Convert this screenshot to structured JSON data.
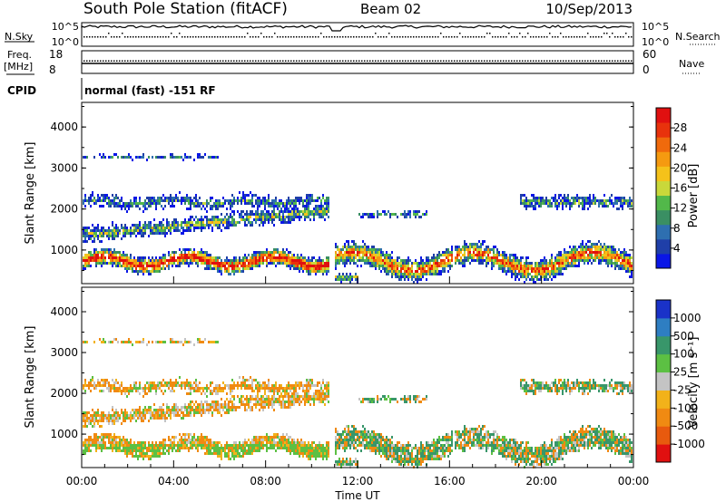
{
  "header": {
    "station": "South Pole Station (fitACF)",
    "beam": "Beam 02",
    "date": "10/Sep/2013"
  },
  "summary_panels": {
    "nsky_label": "N.Sky",
    "nsky_ticks": [
      "10^5",
      "10^0"
    ],
    "nsearch_label": "N.Search",
    "nsearch_ticks": [
      "10^5",
      "10^0"
    ],
    "freq_label_1": "Freq.",
    "freq_label_2": "[MHz]",
    "freq_ticks": [
      "18",
      "8"
    ],
    "nave_label": "Nave",
    "nave_ticks": [
      "60",
      "0"
    ],
    "cpid_label": "CPID",
    "cpid_value": "normal (fast) -151 RF"
  },
  "chart_data": [
    {
      "type": "heatmap",
      "name": "power",
      "ylabel": "Slant Range [km]",
      "ylim": [
        180,
        4600
      ],
      "yticks": [
        "1000",
        "2000",
        "3000",
        "4000"
      ],
      "xlim_hours": [
        0,
        24
      ],
      "colorbar": {
        "label": "Power [dB]",
        "range": [
          0,
          32
        ],
        "ticks": [
          "4",
          "8",
          "12",
          "16",
          "20",
          "24",
          "28"
        ],
        "colors": [
          "#0a16e6",
          "#1f3fa8",
          "#2e6fb0",
          "#3a8f63",
          "#52b84a",
          "#c9d83a",
          "#f5c21a",
          "#f59a10",
          "#f06a0c",
          "#e8320c",
          "#e01010"
        ]
      }
    },
    {
      "type": "heatmap",
      "name": "velocity",
      "ylabel": "Slant Range [km]",
      "ylim": [
        180,
        4600
      ],
      "yticks": [
        "1000",
        "2000",
        "3000",
        "4000"
      ],
      "xlim_hours": [
        0,
        24
      ],
      "xlabel": "Time UT",
      "xticks": [
        "00:00",
        "04:00",
        "08:00",
        "12:00",
        "16:00",
        "20:00",
        "00:00"
      ],
      "colorbar": {
        "label": "Velocity [m s⁻¹]",
        "ticks": [
          "1000",
          "500",
          "100",
          "25",
          "-25",
          "-100",
          "-500",
          "-1000"
        ],
        "colors": [
          "#1a32c8",
          "#2e7ec2",
          "#38966a",
          "#5cc043",
          "#c4c4c4",
          "#f2b21a",
          "#f08a12",
          "#e85a0e",
          "#e01010"
        ]
      }
    }
  ]
}
